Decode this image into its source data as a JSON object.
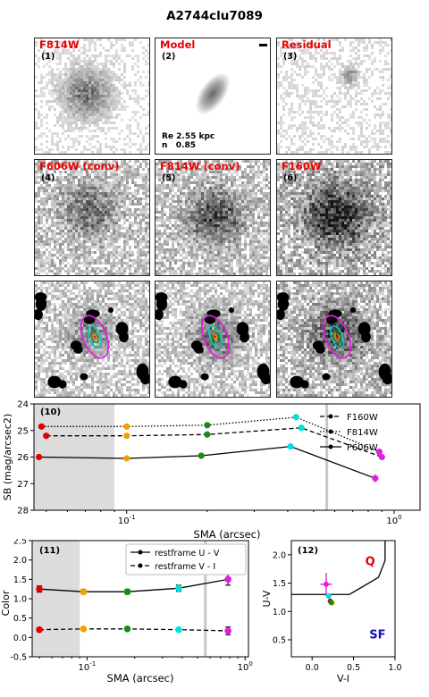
{
  "figure_title": "A2744clu7089",
  "panels": [
    {
      "label": "F814W",
      "num": "(1)"
    },
    {
      "label": "Model",
      "num": "(2)",
      "note": "Re 2.55 kpc\nn   0.85"
    },
    {
      "label": "Residual",
      "num": "(3)"
    },
    {
      "label": "F606W (conv)",
      "num": "(4)"
    },
    {
      "label": "F814W (conv)",
      "num": "(5)"
    },
    {
      "label": "F160W",
      "num": "(6)"
    },
    {
      "label": "",
      "num": ""
    },
    {
      "label": "",
      "num": ""
    },
    {
      "label": "",
      "num": ""
    }
  ],
  "panel_colors": {
    "label": "#e00000",
    "ellipse_outer": "#e020e0",
    "ellipse_inner": "#00c8c8",
    "core": "#e08000",
    "mask": "#000000"
  },
  "chart_data": [
    {
      "type": "line",
      "panel_tag": "(10)",
      "xlabel": "SMA (arcsec)",
      "ylabel": "SB (mag/arcsec2)",
      "xscale": "log",
      "xlim": [
        0.045,
        1.25
      ],
      "ylim": [
        28,
        24
      ],
      "x_tick_labels": [
        "10^-1",
        "10^0"
      ],
      "y_ticks": [
        24,
        25,
        26,
        27,
        28
      ],
      "grid": false,
      "legend_position": "top-right",
      "shaded_region": [
        0.045,
        0.09
      ],
      "vertical_line": 0.56,
      "point_colors": [
        "#e00000",
        "#f5a000",
        "#1a8a1a",
        "#00e0e0",
        "#e020e0"
      ],
      "series": [
        {
          "name": "F160W",
          "style": "dashed",
          "x": [
            0.05,
            0.1,
            0.2,
            0.45,
            0.9
          ],
          "y": [
            25.2,
            25.2,
            25.15,
            24.9,
            26.0
          ]
        },
        {
          "name": "F814W",
          "style": "dotted",
          "x": [
            0.048,
            0.1,
            0.2,
            0.43,
            0.88
          ],
          "y": [
            24.85,
            24.85,
            24.8,
            24.5,
            25.8
          ]
        },
        {
          "name": "F606W",
          "style": "solid",
          "x": [
            0.047,
            0.1,
            0.19,
            0.41,
            0.85
          ],
          "y": [
            26.0,
            26.05,
            25.95,
            25.6,
            26.8
          ],
          "yerr": [
            0,
            0,
            0,
            0.05,
            0.15
          ]
        }
      ]
    },
    {
      "type": "line",
      "panel_tag": "(11)",
      "xlabel": "SMA (arcsec)",
      "ylabel": "Color",
      "xscale": "log",
      "xlim": [
        0.045,
        1.05
      ],
      "ylim": [
        -0.5,
        2.5
      ],
      "x_tick_labels": [
        "10^-1",
        "10^0"
      ],
      "y_ticks": [
        -0.5,
        0.0,
        0.5,
        1.0,
        1.5,
        2.0,
        2.5
      ],
      "grid": false,
      "legend_position": "top-right",
      "shaded_region": [
        0.045,
        0.09
      ],
      "vertical_line": 0.56,
      "point_colors": [
        "#e00000",
        "#f5a000",
        "#1a8a1a",
        "#00e0e0",
        "#e020e0"
      ],
      "series": [
        {
          "name": "restframe U - V",
          "style": "solid",
          "x": [
            0.05,
            0.095,
            0.18,
            0.38,
            0.78
          ],
          "y": [
            1.25,
            1.18,
            1.18,
            1.27,
            1.5
          ],
          "yerr": [
            0.08,
            0.06,
            0.06,
            0.08,
            0.15
          ]
        },
        {
          "name": "restframe V - I",
          "style": "dashed",
          "x": [
            0.05,
            0.095,
            0.18,
            0.38,
            0.78
          ],
          "y": [
            0.2,
            0.22,
            0.22,
            0.2,
            0.17
          ],
          "yerr": [
            0,
            0,
            0,
            0,
            0.1
          ]
        }
      ]
    },
    {
      "type": "scatter",
      "panel_tag": "(12)",
      "xlabel": "V-I",
      "ylabel": "U-V",
      "xlim": [
        -0.25,
        1.0
      ],
      "ylim": [
        0.2,
        2.25
      ],
      "x_tick_labels": [
        "0.0",
        "0.5",
        "1.0"
      ],
      "y_ticks": [
        0.5,
        1.0,
        1.5,
        2.0
      ],
      "region_labels": [
        {
          "text": "Q",
          "color": "#e00000"
        },
        {
          "text": "SF",
          "color": "#1010c0"
        }
      ],
      "boundary": {
        "x": [
          -0.25,
          0.45,
          0.8,
          0.8,
          0.88
        ],
        "y": [
          1.3,
          1.3,
          1.6,
          1.6,
          1.9
        ]
      },
      "points": [
        {
          "x": 0.17,
          "y": 1.48,
          "xerr": 0.07,
          "yerr": 0.2,
          "color": "#e020e0"
        },
        {
          "x": 0.2,
          "y": 1.27,
          "xerr": 0.03,
          "yerr": 0.05,
          "color": "#00e0e0"
        },
        {
          "x": 0.22,
          "y": 1.18,
          "xerr": 0,
          "yerr": 0,
          "color": "#e00000"
        },
        {
          "x": 0.24,
          "y": 1.15,
          "xerr": 0,
          "yerr": 0,
          "color": "#f5a000"
        },
        {
          "x": 0.23,
          "y": 1.16,
          "xerr": 0,
          "yerr": 0,
          "color": "#1a8a1a"
        }
      ]
    }
  ]
}
